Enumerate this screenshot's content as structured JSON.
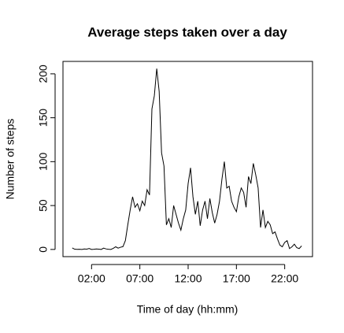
{
  "chart_data": {
    "type": "line",
    "title": "Average steps taken over a day",
    "x_label": "Time of day (hh:mm)",
    "y_label": "Number of steps",
    "x": [
      0,
      0.25,
      0.5,
      0.75,
      1,
      1.25,
      1.5,
      1.75,
      2,
      2.25,
      2.5,
      2.75,
      3,
      3.25,
      3.5,
      3.75,
      4,
      4.25,
      4.5,
      4.75,
      5,
      5.25,
      5.5,
      5.75,
      6,
      6.25,
      6.5,
      6.75,
      7,
      7.25,
      7.5,
      7.75,
      8,
      8.25,
      8.5,
      8.75,
      9,
      9.25,
      9.5,
      9.75,
      10,
      10.25,
      10.5,
      10.75,
      11,
      11.25,
      11.5,
      11.75,
      12,
      12.25,
      12.5,
      12.75,
      13,
      13.25,
      13.5,
      13.75,
      14,
      14.25,
      14.5,
      14.75,
      15,
      15.25,
      15.5,
      15.75,
      16,
      16.25,
      16.5,
      16.75,
      17,
      17.25,
      17.5,
      17.75,
      18,
      18.25,
      18.5,
      18.75,
      19,
      19.25,
      19.5,
      19.75,
      20,
      20.25,
      20.5,
      20.75,
      21,
      21.25,
      21.5,
      21.75,
      22,
      22.25,
      22.5,
      22.75,
      23,
      23.25,
      23.5,
      23.75
    ],
    "series": [
      {
        "color": "#000000",
        "values": [
          1.7,
          0.3,
          0.1,
          0.2,
          0,
          0.5,
          0.3,
          1.1,
          0,
          0.2,
          0.5,
          0.3,
          0,
          1.5,
          0.6,
          0.2,
          0,
          1.3,
          3,
          1.5,
          2.5,
          3.2,
          10,
          28,
          45,
          60,
          48,
          52,
          44,
          55,
          50,
          68,
          62,
          160,
          175,
          206,
          180,
          110,
          95,
          28,
          35,
          25,
          50,
          40,
          30,
          22,
          35,
          45,
          75,
          93,
          60,
          40,
          55,
          27,
          45,
          55,
          35,
          58,
          42,
          30,
          40,
          55,
          80,
          100,
          70,
          72,
          55,
          48,
          43,
          60,
          70,
          65,
          48,
          83,
          75,
          98,
          85,
          70,
          25,
          45,
          25,
          32,
          28,
          18,
          20,
          12,
          5,
          3,
          8,
          10,
          1,
          3,
          6,
          2,
          1,
          4
        ]
      }
    ],
    "xlim": [
      -0.96,
      24.88
    ],
    "ylim": [
      -8.2,
      214.2
    ],
    "xticks": [
      {
        "value": 2,
        "label": "02:00"
      },
      {
        "value": 7,
        "label": "07:00"
      },
      {
        "value": 12,
        "label": "12:00"
      },
      {
        "value": 17,
        "label": "17:00"
      },
      {
        "value": 22,
        "label": "22:00"
      }
    ],
    "yticks": [
      0,
      50,
      100,
      150,
      200
    ]
  }
}
